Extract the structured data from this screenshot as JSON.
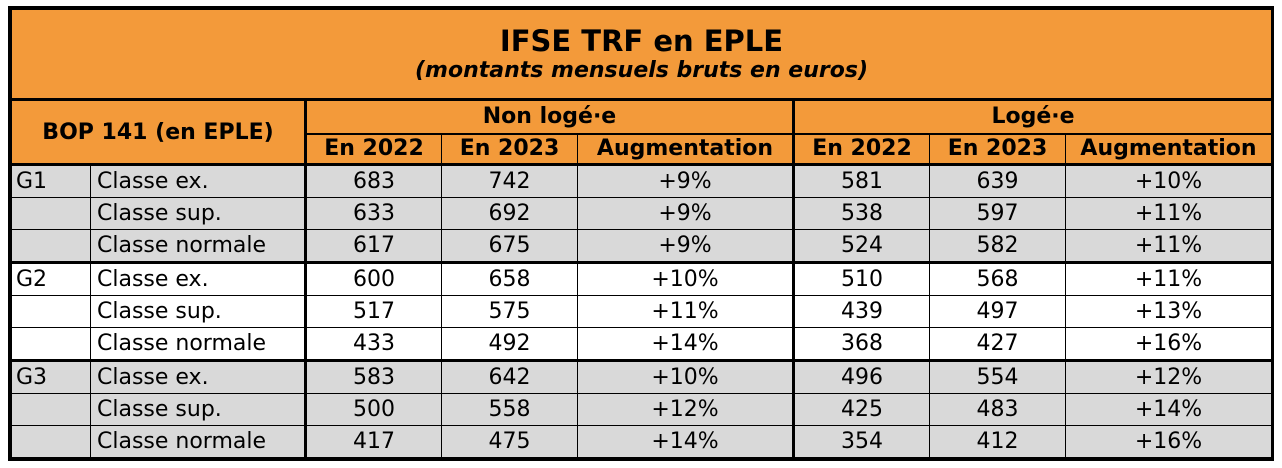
{
  "title": "IFSE TRF en EPLE",
  "subtitle": "(montants mensuels bruts en euros)",
  "header": {
    "bop": "BOP 141 (en EPLE)",
    "group_non_loge": "Non logé·e",
    "group_loge": "Logé·e",
    "col_2022": "En 2022",
    "col_2023": "En 2023",
    "col_aug": "Augmentation"
  },
  "rows": [
    {
      "group": "G1",
      "classe": "Classe ex.",
      "nl2022": "683",
      "nl2023": "742",
      "nlaug": "+9%",
      "l2022": "581",
      "l2023": "639",
      "laug": "+10%"
    },
    {
      "group": "",
      "classe": "Classe sup.",
      "nl2022": "633",
      "nl2023": "692",
      "nlaug": "+9%",
      "l2022": "538",
      "l2023": "597",
      "laug": "+11%"
    },
    {
      "group": "",
      "classe": "Classe normale",
      "nl2022": "617",
      "nl2023": "675",
      "nlaug": "+9%",
      "l2022": "524",
      "l2023": "582",
      "laug": "+11%"
    },
    {
      "group": "G2",
      "classe": "Classe ex.",
      "nl2022": "600",
      "nl2023": "658",
      "nlaug": "+10%",
      "l2022": "510",
      "l2023": "568",
      "laug": "+11%"
    },
    {
      "group": "",
      "classe": "Classe sup.",
      "nl2022": "517",
      "nl2023": "575",
      "nlaug": "+11%",
      "l2022": "439",
      "l2023": "497",
      "laug": "+13%"
    },
    {
      "group": "",
      "classe": "Classe normale",
      "nl2022": "433",
      "nl2023": "492",
      "nlaug": "+14%",
      "l2022": "368",
      "l2023": "427",
      "laug": "+16%"
    },
    {
      "group": "G3",
      "classe": "Classe ex.",
      "nl2022": "583",
      "nl2023": "642",
      "nlaug": "+10%",
      "l2022": "496",
      "l2023": "554",
      "laug": "+12%"
    },
    {
      "group": "",
      "classe": "Classe sup.",
      "nl2022": "500",
      "nl2023": "558",
      "nlaug": "+12%",
      "l2022": "425",
      "l2023": "483",
      "laug": "+14%"
    },
    {
      "group": "",
      "classe": "Classe normale",
      "nl2022": "417",
      "nl2023": "475",
      "nlaug": "+14%",
      "l2022": "354",
      "l2023": "412",
      "laug": "+16%"
    }
  ],
  "colors": {
    "header_bg": "#f39a3a",
    "grey_row": "#d9d9d9",
    "white_row": "#ffffff"
  }
}
